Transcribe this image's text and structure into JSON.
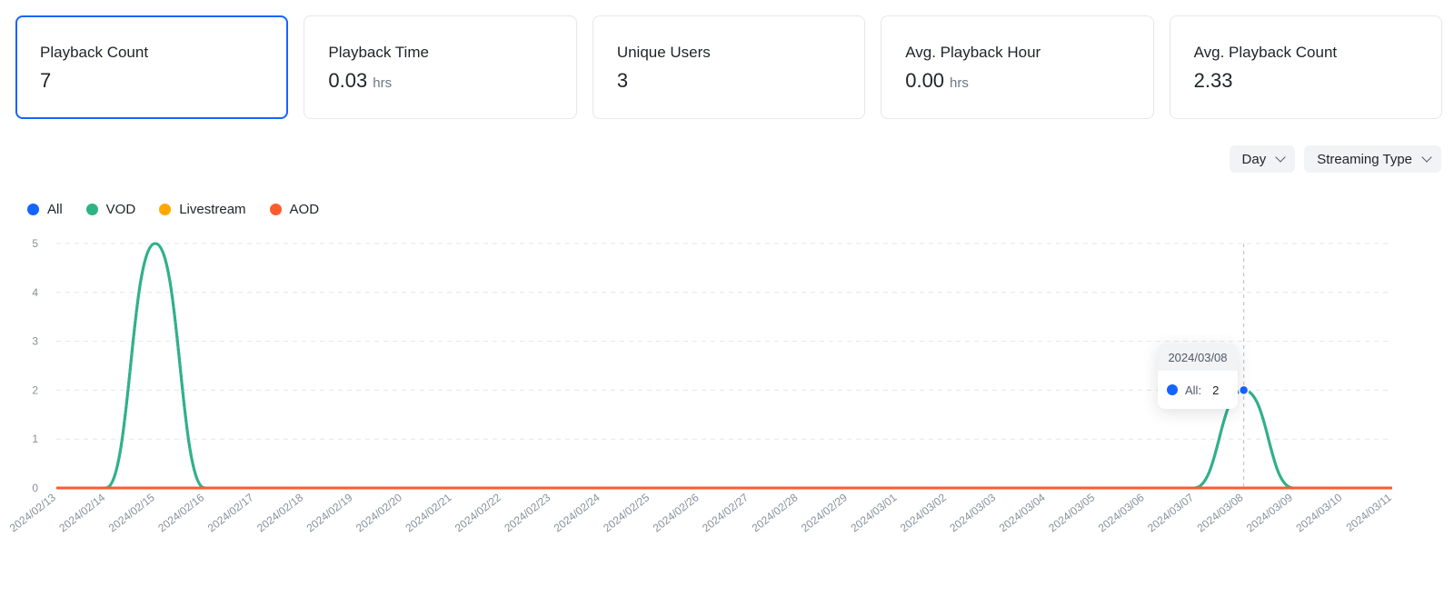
{
  "cards": [
    {
      "title": "Playback Count",
      "value": "7",
      "unit": ""
    },
    {
      "title": "Playback Time",
      "value": "0.03",
      "unit": "hrs"
    },
    {
      "title": "Unique Users",
      "value": "3",
      "unit": ""
    },
    {
      "title": "Avg. Playback Hour",
      "value": "0.00",
      "unit": "hrs"
    },
    {
      "title": "Avg. Playback Count",
      "value": "2.33",
      "unit": ""
    }
  ],
  "active_card": 0,
  "controls": {
    "granularity": "Day",
    "streaming_type": "Streaming Type"
  },
  "colors": {
    "all": "#1664ff",
    "vod": "#2fb383",
    "livestream": "#ffa800",
    "aod": "#ff5a30",
    "accent": "#1664ff"
  },
  "tooltip": {
    "date": "2024/03/08",
    "series": "All:",
    "value": "2"
  },
  "chart_data": {
    "type": "line",
    "x": [
      "2024/02/13",
      "2024/02/14",
      "2024/02/15",
      "2024/02/16",
      "2024/02/17",
      "2024/02/18",
      "2024/02/19",
      "2024/02/20",
      "2024/02/21",
      "2024/02/22",
      "2024/02/23",
      "2024/02/24",
      "2024/02/25",
      "2024/02/26",
      "2024/02/27",
      "2024/02/28",
      "2024/02/29",
      "2024/03/01",
      "2024/03/02",
      "2024/03/03",
      "2024/03/04",
      "2024/03/05",
      "2024/03/06",
      "2024/03/07",
      "2024/03/08",
      "2024/03/09",
      "2024/03/10",
      "2024/03/11"
    ],
    "yticks": [
      0,
      1,
      2,
      3,
      4,
      5
    ],
    "ylim": [
      0,
      5
    ],
    "grid": true,
    "legend_position": "top-left",
    "highlight_index": 24,
    "series": [
      {
        "name": "All",
        "color": "#1664ff",
        "values": [
          0,
          0,
          5,
          0,
          0,
          0,
          0,
          0,
          0,
          0,
          0,
          0,
          0,
          0,
          0,
          0,
          0,
          0,
          0,
          0,
          0,
          0,
          0,
          0,
          2,
          0,
          0,
          0
        ]
      },
      {
        "name": "VOD",
        "color": "#2fb383",
        "values": [
          0,
          0,
          5,
          0,
          0,
          0,
          0,
          0,
          0,
          0,
          0,
          0,
          0,
          0,
          0,
          0,
          0,
          0,
          0,
          0,
          0,
          0,
          0,
          0,
          2,
          0,
          0,
          0
        ]
      },
      {
        "name": "Livestream",
        "color": "#ffa800",
        "values": [
          0,
          0,
          0,
          0,
          0,
          0,
          0,
          0,
          0,
          0,
          0,
          0,
          0,
          0,
          0,
          0,
          0,
          0,
          0,
          0,
          0,
          0,
          0,
          0,
          0,
          0,
          0,
          0
        ]
      },
      {
        "name": "AOD",
        "color": "#ff5a30",
        "values": [
          0,
          0,
          0,
          0,
          0,
          0,
          0,
          0,
          0,
          0,
          0,
          0,
          0,
          0,
          0,
          0,
          0,
          0,
          0,
          0,
          0,
          0,
          0,
          0,
          0,
          0,
          0,
          0
        ]
      }
    ]
  }
}
